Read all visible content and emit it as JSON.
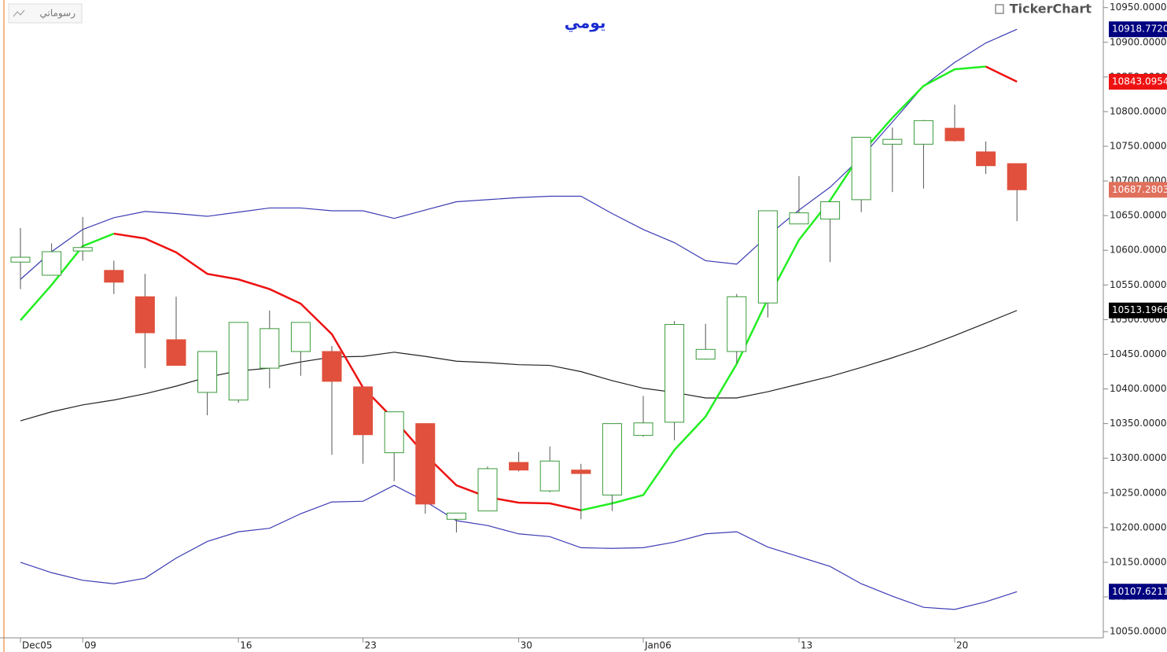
{
  "brand": "TickerChart",
  "button": "رسوماتي",
  "chart_data": {
    "type": "candlestick",
    "title": "يومي",
    "categories": [
      "Dec05",
      null,
      "09",
      null,
      null,
      null,
      null,
      "16",
      null,
      null,
      null,
      "23",
      null,
      null,
      null,
      null,
      "30",
      null,
      null,
      null,
      "Jan06",
      null,
      null,
      null,
      null,
      "13",
      null,
      null,
      null,
      null,
      "20",
      null,
      null
    ],
    "open": [
      10583,
      10564,
      10599,
      10571,
      10533,
      10471,
      10395,
      10384,
      10430,
      10454,
      10454,
      10403,
      10308,
      10350,
      10212,
      10224,
      10294,
      10253,
      10283,
      10247,
      10333,
      10352,
      10443,
      10454,
      10524,
      10638,
      10645,
      10673,
      10753,
      10753,
      10776,
      10742,
      10725
    ],
    "high": [
      10632,
      10610,
      10648,
      10585,
      10566,
      10533,
      10454,
      10496,
      10513,
      10496,
      10462,
      10403,
      10367,
      10350,
      10221,
      10288,
      10309,
      10317,
      10292,
      10350,
      10390,
      10498,
      10494,
      10537,
      10657,
      10707,
      10670,
      10763,
      10777,
      10788,
      10810,
      10757,
      10725
    ],
    "low": [
      10544,
      10564,
      10585,
      10537,
      10430,
      10434,
      10362,
      10380,
      10401,
      10419,
      10305,
      10292,
      10267,
      10220,
      10193,
      10224,
      10281,
      10251,
      10212,
      10224,
      10331,
      10326,
      10442,
      10437,
      10503,
      10638,
      10583,
      10655,
      10684,
      10689,
      10757,
      10710,
      10642
    ],
    "close": [
      10590,
      10598,
      10604,
      10554,
      10481,
      10434,
      10454,
      10496,
      10487,
      10496,
      10411,
      10334,
      10367,
      10234,
      10221,
      10285,
      10283,
      10296,
      10278,
      10350,
      10351,
      10493,
      10457,
      10533,
      10657,
      10654,
      10670,
      10763,
      10760,
      10787,
      10758,
      10722,
      10687.2803
    ],
    "up_color": "#3a9a3a",
    "down_color": "#e0503c",
    "series": [
      {
        "color": "#3c3cb4",
        "values": [
          10558,
          10598,
          10630,
          10647,
          10656,
          10653,
          10649,
          10655,
          10661,
          10661,
          10657,
          10657,
          10646,
          10658,
          10670,
          10673,
          10676,
          10678,
          10678,
          10653,
          10630,
          10611,
          10585,
          10580,
          10621,
          10658,
          10691,
          10734,
          10785,
          10837,
          10871,
          10899,
          10918.772
        ]
      },
      {
        "color": "#222222",
        "values": [
          10354,
          10367,
          10377,
          10384,
          10393,
          10404,
          10417,
          10426,
          10430,
          10439,
          10446,
          10447,
          10453,
          10447,
          10440,
          10438,
          10435,
          10434,
          10425,
          10412,
          10401,
          10395,
          10387,
          10387,
          10396,
          10407,
          10418,
          10431,
          10445,
          10460,
          10477,
          10495,
          10513.1966
        ]
      },
      {
        "color": "#3c3cb4",
        "values": [
          10150,
          10135,
          10124,
          10119,
          10127,
          10156,
          10180,
          10194,
          10199,
          10220,
          10237,
          10238,
          10261,
          10238,
          10210,
          10203,
          10191,
          10187,
          10171,
          10170,
          10171,
          10179,
          10191,
          10194,
          10172,
          10158,
          10144,
          10119,
          10101,
          10085,
          10082,
          10093,
          10107.6211
        ]
      },
      {
        "color": "#22ee22",
        "values": [
          10499,
          10550,
          10606,
          10624,
          null,
          null,
          null,
          null,
          null,
          null,
          null,
          null,
          null,
          null,
          null,
          null,
          null,
          null,
          10225,
          10235,
          10247,
          10312,
          10360,
          10436,
          10530,
          10615,
          10672,
          10740,
          10791,
          10837,
          10861,
          10865,
          null
        ]
      },
      {
        "color": "#ee1111",
        "values": [
          null,
          null,
          null,
          10624,
          10617,
          10597,
          10566,
          10558,
          10544,
          10523,
          10479,
          10402,
          10356,
          10305,
          10261,
          10244,
          10236,
          10235,
          10225,
          null,
          null,
          null,
          null,
          null,
          null,
          null,
          null,
          null,
          null,
          null,
          null,
          10865,
          10843.0954
        ]
      }
    ],
    "price_tags": [
      {
        "value": 10918.772,
        "label": "10918.7720",
        "color": "#000080"
      },
      {
        "value": 10843.0954,
        "label": "10843.0954",
        "color": "#ee1111"
      },
      {
        "value": 10687.2803,
        "label": "10687.2803",
        "color": "#e0705c"
      },
      {
        "value": 10513.1966,
        "label": "10513.1966",
        "color": "#000000"
      },
      {
        "value": 10107.6211,
        "label": "10107.6211",
        "color": "#000080"
      }
    ],
    "ylim": [
      10041,
      10961
    ],
    "yticks": [
      {
        "value": 10050,
        "label": "10050.0000"
      },
      {
        "value": 10100,
        "label": "10100.0000"
      },
      {
        "value": 10150,
        "label": "10150.0000"
      },
      {
        "value": 10200,
        "label": "10200.0000"
      },
      {
        "value": 10250,
        "label": "10250.0000"
      },
      {
        "value": 10300,
        "label": "10300.0000"
      },
      {
        "value": 10350,
        "label": "10350.0000"
      },
      {
        "value": 10400,
        "label": "10400.0000"
      },
      {
        "value": 10450,
        "label": "10450.0000"
      },
      {
        "value": 10500,
        "label": "10500.0000"
      },
      {
        "value": 10550,
        "label": "10550.0000"
      },
      {
        "value": 10600,
        "label": "10600.0000"
      },
      {
        "value": 10650,
        "label": "10650.0000"
      },
      {
        "value": 10700,
        "label": "10700.0000"
      },
      {
        "value": 10750,
        "label": "10750.0000"
      },
      {
        "value": 10800,
        "label": "10800.0000"
      },
      {
        "value": 10850,
        "label": "10850.0000"
      },
      {
        "value": 10900,
        "label": "10900.0000"
      },
      {
        "value": 10950,
        "label": "10950.0000"
      }
    ]
  }
}
